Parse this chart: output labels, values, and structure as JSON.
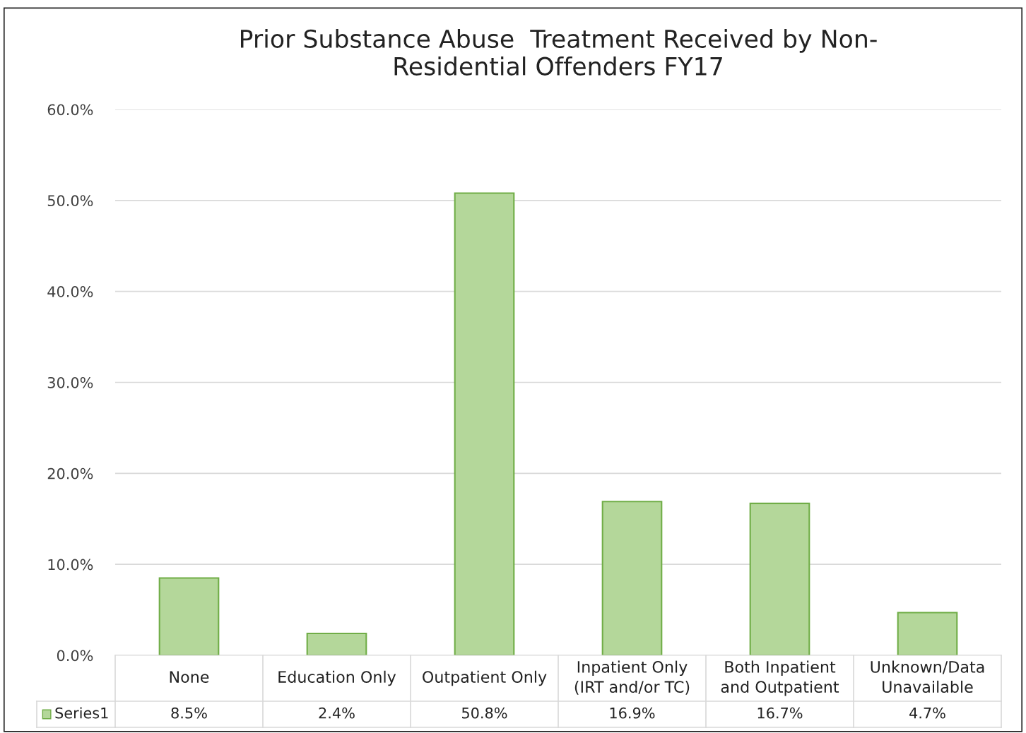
{
  "chart_data": {
    "type": "bar",
    "title": "Prior Substance Abuse  Treatment Received by Non-\nResidential Offenders FY17",
    "categories": [
      "None",
      "Education Only",
      "Outpatient Only",
      "Inpatient Only\n(IRT and/or TC)",
      "Both Inpatient\nand Outpatient",
      "Unknown/Data\nUnavailable"
    ],
    "series": [
      {
        "name": "Series1",
        "color": "#b4d79a",
        "values": [
          8.5,
          2.4,
          50.8,
          16.9,
          16.7,
          4.7
        ],
        "value_labels": [
          "8.5%",
          "2.4%",
          "50.8%",
          "16.9%",
          "16.7%",
          "4.7%"
        ]
      }
    ],
    "ylim": [
      0,
      60
    ],
    "yticks": [
      {
        "value": 0,
        "label": "0.0%"
      },
      {
        "value": 10,
        "label": "10.0%"
      },
      {
        "value": 20,
        "label": "20.0%"
      },
      {
        "value": 30,
        "label": "30.0%"
      },
      {
        "value": 40,
        "label": "40.0%"
      },
      {
        "value": 50,
        "label": "50.0%"
      },
      {
        "value": 60,
        "label": "60.0%"
      }
    ],
    "grid": "y",
    "legend": "bottom"
  }
}
